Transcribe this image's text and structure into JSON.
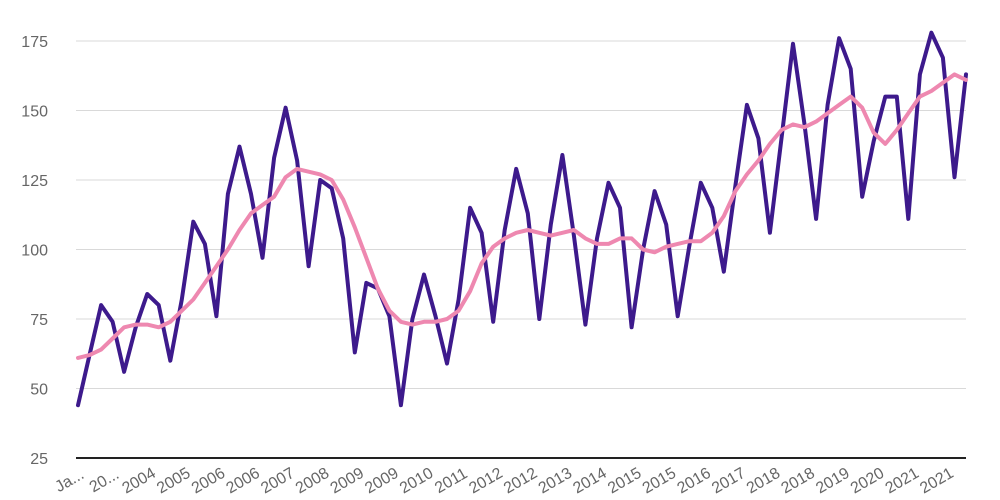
{
  "chart_data": {
    "type": "line",
    "title": "",
    "xlabel": "",
    "ylabel": "",
    "ylim": [
      25,
      175
    ],
    "yticks": [
      25,
      50,
      75,
      100,
      125,
      150,
      175
    ],
    "grid": true,
    "legend": "none",
    "x_tick_labels": [
      "Ja...",
      "20...",
      "2004",
      "2005",
      "2006",
      "2006",
      "2007",
      "2008",
      "2009",
      "2009",
      "2010",
      "2011",
      "2012",
      "2012",
      "2013",
      "2014",
      "2015",
      "2015",
      "2016",
      "2017",
      "2018",
      "2018",
      "2019",
      "2020",
      "2021",
      "2021"
    ],
    "series": [
      {
        "color": "#3d1a8c",
        "values": [
          44,
          62,
          80,
          74,
          56,
          72,
          84,
          80,
          60,
          82,
          110,
          102,
          76,
          120,
          137,
          120,
          97,
          133,
          151,
          132,
          94,
          125,
          122,
          104,
          63,
          88,
          86,
          76,
          44,
          75,
          91,
          76,
          59,
          82,
          115,
          106,
          74,
          107,
          129,
          113,
          75,
          109,
          134,
          105,
          73,
          104,
          124,
          115,
          72,
          100,
          121,
          109,
          76,
          101,
          124,
          115,
          92,
          123,
          152,
          140,
          106,
          140,
          174,
          145,
          111,
          152,
          176,
          165,
          119,
          139,
          155,
          155,
          111,
          163,
          178,
          169,
          126,
          163
        ]
      },
      {
        "color": "#ee88b0",
        "values": [
          61,
          62,
          64,
          68,
          72,
          73,
          73,
          72,
          74,
          78,
          82,
          88,
          94,
          100,
          107,
          113,
          116,
          119,
          126,
          129,
          128,
          127,
          125,
          118,
          108,
          97,
          86,
          78,
          74,
          73,
          74,
          74,
          75,
          78,
          85,
          95,
          101,
          104,
          106,
          107,
          106,
          105,
          106,
          107,
          104,
          102,
          102,
          104,
          104,
          100,
          99,
          101,
          102,
          103,
          103,
          106,
          112,
          121,
          127,
          132,
          138,
          143,
          145,
          144,
          146,
          149,
          152,
          155,
          151,
          142,
          138,
          143,
          149,
          155,
          157,
          160,
          163,
          161
        ]
      }
    ]
  }
}
